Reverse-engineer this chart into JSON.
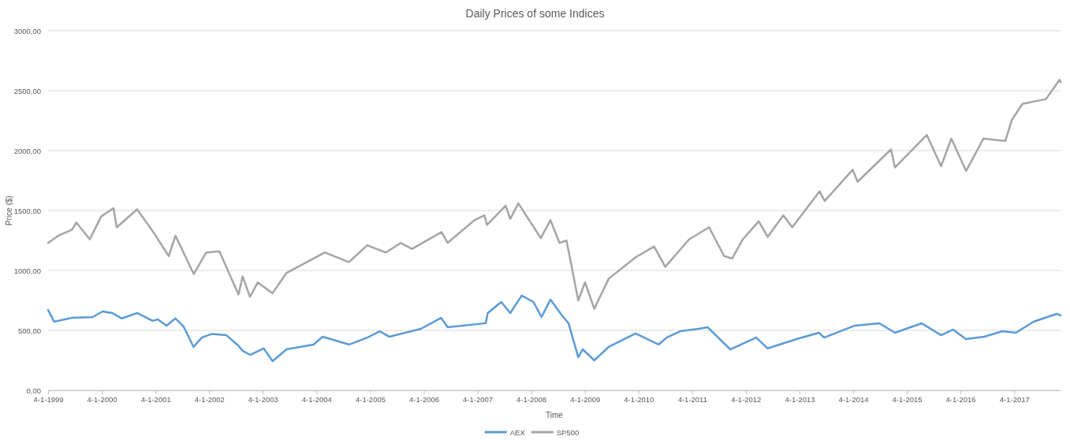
{
  "chart_data": {
    "type": "line",
    "title": "Daily Prices of some Indices",
    "xlabel": "Time",
    "ylabel": "Price ($)",
    "xlim": [
      "1999-01-04",
      "2017-11-15"
    ],
    "ylim": [
      0,
      3000
    ],
    "xticks": [
      {
        "value": "1999-01-04",
        "label": "4-1-1999"
      },
      {
        "value": "2000-01-04",
        "label": "4-1-2000"
      },
      {
        "value": "2001-01-04",
        "label": "4-1-2001"
      },
      {
        "value": "2002-01-04",
        "label": "4-1-2002"
      },
      {
        "value": "2003-01-04",
        "label": "4-1-2003"
      },
      {
        "value": "2004-01-04",
        "label": "4-1-2004"
      },
      {
        "value": "2005-01-04",
        "label": "4-1-2005"
      },
      {
        "value": "2006-01-04",
        "label": "4-1-2006"
      },
      {
        "value": "2007-01-04",
        "label": "4-1-2007"
      },
      {
        "value": "2008-01-04",
        "label": "4-1-2008"
      },
      {
        "value": "2009-01-04",
        "label": "4-1-2009"
      },
      {
        "value": "2010-01-04",
        "label": "4-1-2010"
      },
      {
        "value": "2011-01-04",
        "label": "4-1-2011"
      },
      {
        "value": "2012-01-04",
        "label": "4-1-2012"
      },
      {
        "value": "2013-01-04",
        "label": "4-1-2013"
      },
      {
        "value": "2014-01-04",
        "label": "4-1-2014"
      },
      {
        "value": "2015-01-04",
        "label": "4-1-2015"
      },
      {
        "value": "2016-01-04",
        "label": "4-1-2016"
      },
      {
        "value": "2017-01-04",
        "label": "4-1-2017"
      }
    ],
    "yticks": [
      {
        "value": 0,
        "label": "0,00"
      },
      {
        "value": 500,
        "label": "500,00"
      },
      {
        "value": 1000,
        "label": "1000,00"
      },
      {
        "value": 1500,
        "label": "1500,00"
      },
      {
        "value": 2000,
        "label": "2000,00"
      },
      {
        "value": 2500,
        "label": "2500,00"
      },
      {
        "value": 3000,
        "label": "3000,00"
      }
    ],
    "grid": "y",
    "legend": "bottom",
    "marker": "none",
    "line_style": "solid",
    "series": [
      {
        "name": "AEX",
        "color": "#5b9bd5",
        "x": [
          "1999-01-04",
          "1999-02-15",
          "1999-06-15",
          "1999-11-01",
          "2000-01-10",
          "2000-03-15",
          "2000-05-20",
          "2000-09-01",
          "2000-12-15",
          "2001-01-20",
          "2001-03-20",
          "2001-05-20",
          "2001-07-15",
          "2001-09-20",
          "2001-11-15",
          "2002-01-20",
          "2002-05-01",
          "2002-07-20",
          "2002-08-20",
          "2002-10-10",
          "2003-01-10",
          "2003-03-12",
          "2003-06-15",
          "2003-12-15",
          "2004-02-15",
          "2004-08-15",
          "2004-12-15",
          "2005-03-10",
          "2005-05-15",
          "2005-12-15",
          "2006-05-01",
          "2006-06-15",
          "2007-03-01",
          "2007-03-15",
          "2007-06-15",
          "2007-08-15",
          "2007-11-01",
          "2008-01-20",
          "2008-03-15",
          "2008-05-15",
          "2008-08-01",
          "2008-09-15",
          "2008-11-20",
          "2008-12-20",
          "2009-03-09",
          "2009-06-15",
          "2009-12-15",
          "2010-05-20",
          "2010-07-15",
          "2010-10-15",
          "2011-02-15",
          "2011-04-20",
          "2011-09-20",
          "2012-03-15",
          "2012-06-01",
          "2012-12-15",
          "2013-05-15",
          "2013-06-20",
          "2014-01-15",
          "2014-07-01",
          "2014-10-15",
          "2015-04-15",
          "2015-08-25",
          "2015-11-15",
          "2016-02-10",
          "2016-06-15",
          "2016-10-15",
          "2017-01-15",
          "2017-05-15",
          "2017-10-20",
          "2017-11-15"
        ],
        "values": [
          670,
          572,
          605,
          610,
          658,
          645,
          600,
          645,
          580,
          592,
          540,
          600,
          530,
          362,
          440,
          470,
          460,
          375,
          330,
          296,
          350,
          243,
          342,
          382,
          447,
          382,
          440,
          493,
          447,
          513,
          605,
          526,
          560,
          645,
          737,
          645,
          790,
          737,
          612,
          757,
          625,
          559,
          276,
          342,
          250,
          362,
          474,
          382,
          440,
          493,
          513,
          526,
          342,
          440,
          350,
          428,
          480,
          440,
          540,
          559,
          480,
          559,
          460,
          507,
          428,
          447,
          493,
          480,
          572,
          638,
          625
        ]
      },
      {
        "name": "SP500",
        "color": "#a5a5a5",
        "x": [
          "1999-01-04",
          "1999-03-15",
          "1999-06-15",
          "1999-07-15",
          "1999-10-15",
          "1999-12-31",
          "2000-03-24",
          "2000-04-15",
          "2000-09-01",
          "2000-12-20",
          "2001-04-04",
          "2001-05-20",
          "2001-09-21",
          "2001-12-15",
          "2002-03-15",
          "2002-07-23",
          "2002-08-20",
          "2002-10-09",
          "2002-12-01",
          "2003-03-11",
          "2003-06-15",
          "2003-12-15",
          "2004-03-01",
          "2004-08-12",
          "2004-12-15",
          "2005-04-20",
          "2005-08-01",
          "2005-10-15",
          "2006-05-05",
          "2006-06-15",
          "2006-12-15",
          "2007-02-20",
          "2007-03-10",
          "2007-07-15",
          "2007-08-15",
          "2007-10-09",
          "2008-03-10",
          "2008-05-15",
          "2008-07-15",
          "2008-09-01",
          "2008-11-20",
          "2009-01-05",
          "2009-03-09",
          "2009-06-15",
          "2009-12-15",
          "2010-04-20",
          "2010-07-05",
          "2010-12-15",
          "2011-04-29",
          "2011-08-10",
          "2011-10-03",
          "2011-12-15",
          "2012-04-01",
          "2012-06-01",
          "2012-09-15",
          "2012-11-15",
          "2013-05-20",
          "2013-06-24",
          "2013-12-31",
          "2014-02-03",
          "2014-09-18",
          "2014-10-15",
          "2015-05-20",
          "2015-08-25",
          "2015-11-03",
          "2016-02-11",
          "2016-06-08",
          "2016-11-04",
          "2016-12-20",
          "2017-03-01",
          "2017-08-08",
          "2017-11-08",
          "2017-11-15"
        ],
        "values": [
          1230,
          1290,
          1340,
          1400,
          1260,
          1450,
          1520,
          1360,
          1510,
          1320,
          1120,
          1290,
          970,
          1150,
          1160,
          800,
          950,
          780,
          900,
          810,
          980,
          1100,
          1150,
          1070,
          1210,
          1150,
          1230,
          1180,
          1320,
          1230,
          1420,
          1460,
          1380,
          1540,
          1430,
          1560,
          1270,
          1420,
          1230,
          1250,
          750,
          900,
          680,
          930,
          1110,
          1200,
          1030,
          1260,
          1360,
          1120,
          1100,
          1260,
          1410,
          1280,
          1460,
          1360,
          1660,
          1580,
          1840,
          1740,
          2010,
          1860,
          2130,
          1870,
          2100,
          1830,
          2100,
          2080,
          2260,
          2390,
          2430,
          2590,
          2570
        ]
      }
    ]
  }
}
